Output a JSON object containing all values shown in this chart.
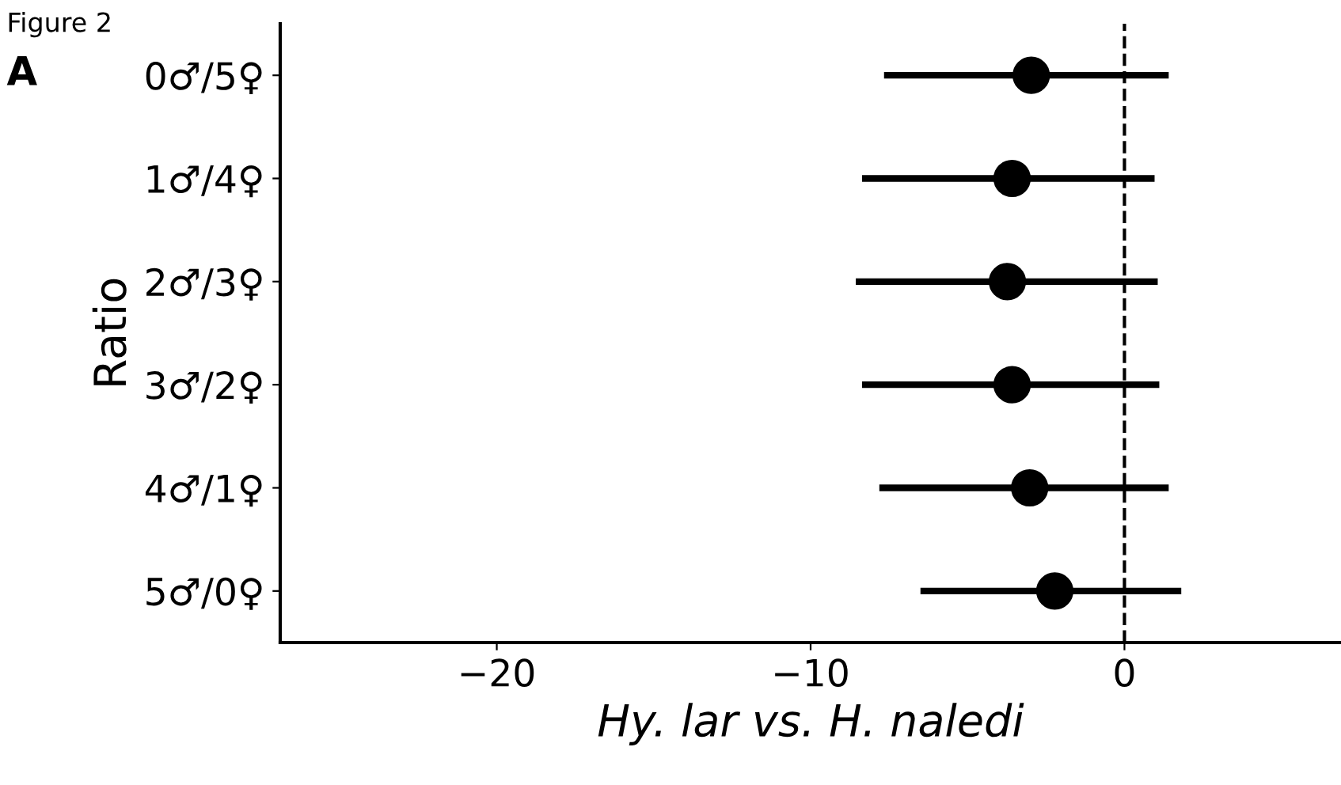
{
  "chart_data": {
    "type": "scatter",
    "orientation": "horizontal",
    "categories": [
      "0♂/5♀",
      "1♂/4♀",
      "2♂/3♀",
      "3♂/2♀",
      "4♂/1♀",
      "5♂/0♀"
    ],
    "values": [
      -2.97,
      -3.58,
      -3.73,
      -3.58,
      -3.02,
      -2.22
    ],
    "errors": [
      [
        -7.66,
        1.41
      ],
      [
        -8.36,
        0.96
      ],
      [
        -8.56,
        1.06
      ],
      [
        -8.36,
        1.11
      ],
      [
        -7.81,
        1.41
      ],
      [
        -6.5,
        1.81
      ]
    ],
    "color": "#000000",
    "marker": "circle",
    "xlim": [
      -26.9,
      6.9
    ],
    "xticks": [
      -20,
      -10,
      0
    ],
    "xlabel": "Hy. lar vs. H. naledi",
    "ylabel": "Ratio",
    "ref_lines": [
      {
        "axis": "x",
        "value": 0,
        "line_style": "dashed",
        "color": "#000000"
      }
    ],
    "annotations": [
      "Figure 2",
      "A"
    ],
    "grid": false,
    "legend": false
  }
}
